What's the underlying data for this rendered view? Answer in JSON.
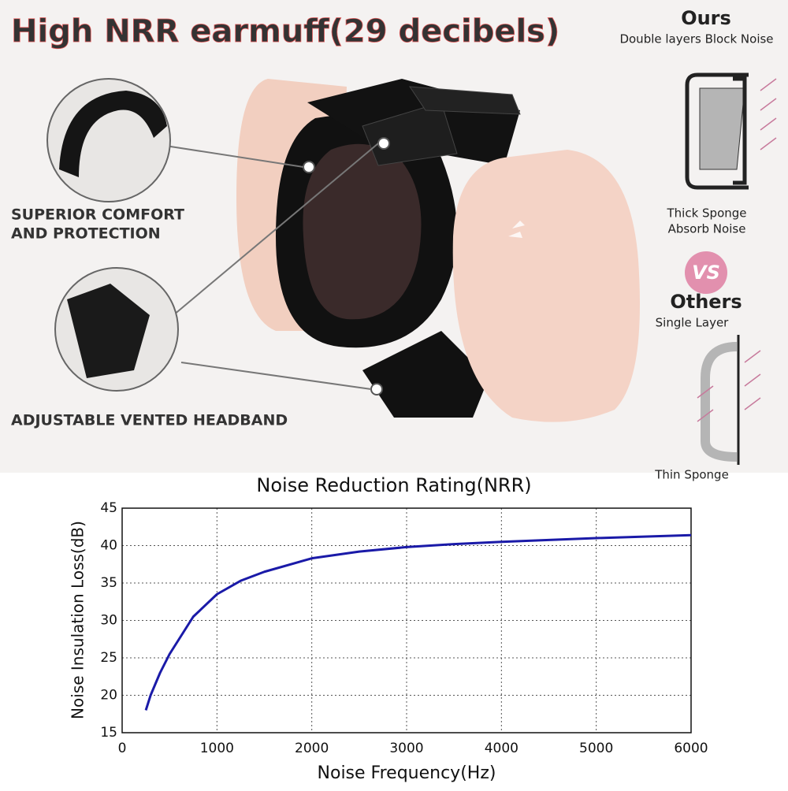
{
  "header": {
    "title": "High NRR earmuff(29 decibels)"
  },
  "callouts": [
    {
      "lines": [
        "SUPERIOR COMFORT",
        "AND PROTECTION"
      ]
    },
    {
      "lines": [
        "ADJUSTABLE VENTED HEADBAND"
      ]
    }
  ],
  "comparison": {
    "ours": {
      "title": "Ours",
      "top_label": "Double layers Block Noise",
      "bottom_label": [
        "Thick Sponge",
        "Absorb Noise"
      ]
    },
    "vs": "VS",
    "others": {
      "title": "Others",
      "top_label": "Single Layer",
      "bottom_label": "Thin Sponge"
    }
  },
  "chart_data": {
    "type": "line",
    "title": "Noise Reduction Rating(NRR)",
    "x_label": "Noise Frequency(Hz)",
    "y_label": "Noise Insulation Loss(dB)",
    "x": [
      250,
      300,
      400,
      500,
      600,
      750,
      1000,
      1250,
      1500,
      2000,
      2500,
      3000,
      3500,
      4000,
      5000,
      6000
    ],
    "series": [
      {
        "name": "NRR",
        "color": "#1a1aa8",
        "values": [
          18,
          20,
          23,
          25.5,
          27.5,
          30.5,
          33.5,
          35.3,
          36.5,
          38.3,
          39.2,
          39.8,
          40.2,
          40.5,
          41,
          41.4
        ]
      }
    ],
    "xlim": [
      0,
      6000
    ],
    "xticks": [
      0,
      1000,
      2000,
      3000,
      4000,
      5000,
      6000
    ],
    "ylim": [
      15,
      45
    ],
    "yticks": [
      15,
      20,
      25,
      30,
      35,
      40,
      45
    ],
    "grid": true
  }
}
